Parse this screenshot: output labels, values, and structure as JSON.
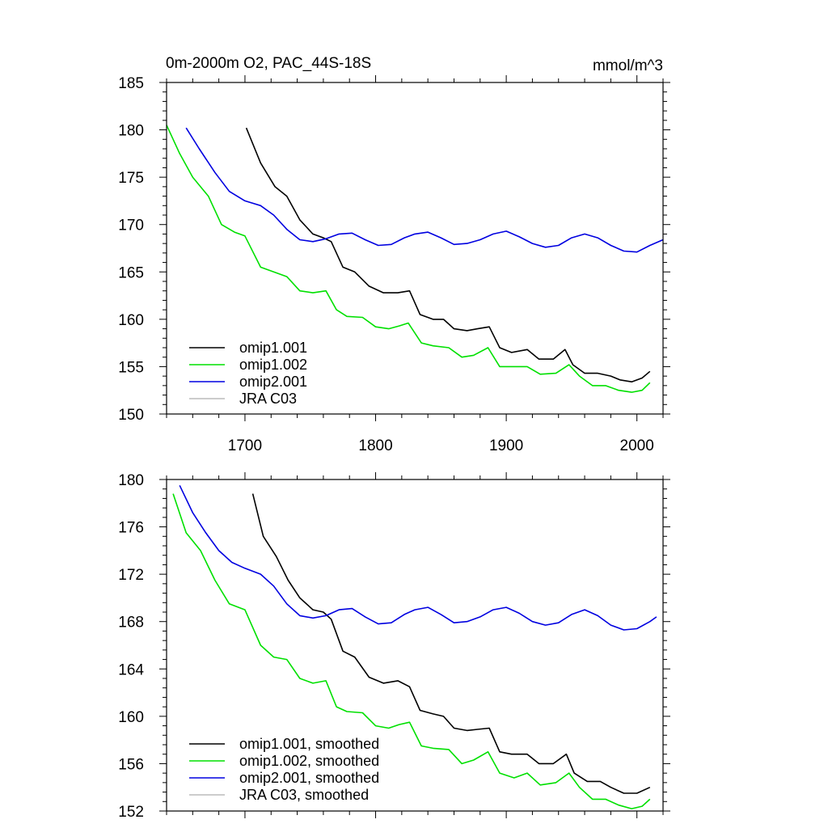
{
  "chart_data": [
    {
      "type": "line",
      "title": "0m-2000m O2, PAC_44S-18S",
      "unit_label": "mmol/m^3",
      "xlim": [
        1640,
        2020
      ],
      "ylim": [
        150,
        185
      ],
      "xticks": [
        1700,
        1800,
        1900,
        2000
      ],
      "xtick_labels": [
        "1700",
        "1800",
        "1900",
        "2000"
      ],
      "yticks": [
        150,
        155,
        160,
        165,
        170,
        175,
        180,
        185
      ],
      "ytick_labels": [
        "150",
        "155",
        "160",
        "165",
        "170",
        "175",
        "180",
        "185"
      ],
      "grid": false,
      "legend_position": "bottom-left",
      "legend": [
        {
          "label": "omip1.001",
          "color": "#000000"
        },
        {
          "label": "omip1.002",
          "color": "#00e000"
        },
        {
          "label": "omip2.001",
          "color": "#0000e0"
        },
        {
          "label": "JRA C03",
          "color": "#bbbbbb"
        }
      ],
      "series": [
        {
          "name": "omip1.001",
          "color": "#000000",
          "x": [
            1701,
            1712,
            1723,
            1732,
            1742,
            1752,
            1760,
            1766,
            1775,
            1784,
            1795,
            1806,
            1817,
            1826,
            1834,
            1844,
            1852,
            1860,
            1870,
            1878,
            1887,
            1895,
            1904,
            1916,
            1925,
            1936,
            1945,
            1951,
            1960,
            1970,
            1980,
            1987,
            1996,
            2004,
            2010
          ],
          "y": [
            180.2,
            176.5,
            174.0,
            173.0,
            170.5,
            169.0,
            168.6,
            168.2,
            165.5,
            165.0,
            163.5,
            162.8,
            162.8,
            163.0,
            160.5,
            160.0,
            160.0,
            159.0,
            158.8,
            159.0,
            159.2,
            157.0,
            156.5,
            156.8,
            155.8,
            155.8,
            156.8,
            155.2,
            154.3,
            154.3,
            154.0,
            153.6,
            153.4,
            153.8,
            154.5
          ]
        },
        {
          "name": "omip1.002",
          "color": "#00e000",
          "x": [
            1640,
            1650,
            1660,
            1672,
            1682,
            1692,
            1700,
            1712,
            1722,
            1732,
            1742,
            1752,
            1762,
            1770,
            1778,
            1790,
            1800,
            1810,
            1818,
            1825,
            1835,
            1844,
            1856,
            1866,
            1875,
            1886,
            1895,
            1906,
            1916,
            1926,
            1938,
            1948,
            1956,
            1966,
            1976,
            1986,
            1996,
            2004,
            2010
          ],
          "y": [
            180.5,
            177.5,
            175.0,
            173.0,
            170.0,
            169.2,
            168.8,
            165.5,
            165.0,
            164.5,
            163.0,
            162.8,
            163.0,
            161.0,
            160.3,
            160.2,
            159.2,
            159.0,
            159.3,
            159.6,
            157.5,
            157.2,
            157.0,
            156.0,
            156.2,
            157.0,
            155.0,
            155.0,
            155.0,
            154.2,
            154.3,
            155.2,
            154.0,
            153.0,
            153.0,
            152.5,
            152.3,
            152.5,
            153.3
          ]
        },
        {
          "name": "omip2.001",
          "color": "#0000e0",
          "x": [
            1655,
            1665,
            1677,
            1688,
            1700,
            1712,
            1722,
            1732,
            1742,
            1752,
            1762,
            1772,
            1782,
            1792,
            1802,
            1812,
            1822,
            1830,
            1840,
            1850,
            1860,
            1870,
            1880,
            1890,
            1900,
            1910,
            1920,
            1930,
            1940,
            1950,
            1960,
            1970,
            1980,
            1990,
            2000,
            2010,
            2020
          ],
          "y": [
            180.2,
            178.0,
            175.5,
            173.5,
            172.5,
            172.0,
            171.0,
            169.5,
            168.4,
            168.2,
            168.5,
            169.0,
            169.1,
            168.4,
            167.8,
            167.9,
            168.6,
            169.0,
            169.2,
            168.6,
            167.9,
            168.0,
            168.4,
            169.0,
            169.3,
            168.7,
            168.0,
            167.6,
            167.8,
            168.6,
            169.0,
            168.6,
            167.8,
            167.2,
            167.1,
            167.8,
            168.4
          ]
        },
        {
          "name": "JRA C03",
          "color": "#bbbbbb",
          "x": [],
          "y": []
        }
      ]
    },
    {
      "type": "line",
      "xlim": [
        1640,
        2020
      ],
      "ylim": [
        152,
        180
      ],
      "xticks": [
        1700,
        1800,
        1900,
        2000
      ],
      "yticks": [
        152,
        156,
        160,
        164,
        168,
        172,
        176,
        180
      ],
      "ytick_labels": [
        "152",
        "156",
        "160",
        "164",
        "168",
        "172",
        "176",
        "180"
      ],
      "grid": false,
      "legend_position": "bottom-left",
      "legend": [
        {
          "label": "omip1.001, smoothed",
          "color": "#000000"
        },
        {
          "label": "omip1.002, smoothed",
          "color": "#00e000"
        },
        {
          "label": "omip2.001, smoothed",
          "color": "#0000e0"
        },
        {
          "label": "JRA C03, smoothed",
          "color": "#bbbbbb"
        }
      ],
      "series": [
        {
          "name": "omip1.001, smoothed",
          "color": "#000000",
          "x": [
            1706,
            1714,
            1724,
            1733,
            1742,
            1752,
            1760,
            1766,
            1775,
            1784,
            1795,
            1806,
            1817,
            1826,
            1834,
            1844,
            1852,
            1860,
            1870,
            1878,
            1887,
            1895,
            1904,
            1916,
            1925,
            1936,
            1946,
            1952,
            1962,
            1972,
            1980,
            1990,
            2000,
            2010
          ],
          "y": [
            178.8,
            175.2,
            173.5,
            171.5,
            170.0,
            169.0,
            168.8,
            168.2,
            165.5,
            165.0,
            163.3,
            162.8,
            163.0,
            162.5,
            160.5,
            160.2,
            160.0,
            159.0,
            158.8,
            158.9,
            159.0,
            157.0,
            156.8,
            156.8,
            156.0,
            156.0,
            156.8,
            155.2,
            154.5,
            154.5,
            154.0,
            153.5,
            153.5,
            154.0
          ]
        },
        {
          "name": "omip1.002, smoothed",
          "color": "#00e000",
          "x": [
            1645,
            1655,
            1666,
            1677,
            1688,
            1700,
            1712,
            1722,
            1732,
            1742,
            1752,
            1762,
            1770,
            1778,
            1790,
            1800,
            1810,
            1818,
            1826,
            1835,
            1844,
            1856,
            1866,
            1875,
            1886,
            1895,
            1906,
            1916,
            1926,
            1938,
            1948,
            1956,
            1966,
            1976,
            1986,
            1996,
            2004,
            2010
          ],
          "y": [
            178.8,
            175.5,
            174.0,
            171.5,
            169.5,
            169.0,
            166.0,
            165.0,
            164.8,
            163.2,
            162.8,
            163.0,
            160.8,
            160.4,
            160.3,
            159.2,
            159.0,
            159.3,
            159.5,
            157.5,
            157.3,
            157.2,
            156.0,
            156.3,
            157.0,
            155.2,
            154.8,
            155.2,
            154.2,
            154.4,
            155.2,
            154.0,
            153.0,
            153.0,
            152.5,
            152.2,
            152.4,
            153.0
          ]
        },
        {
          "name": "omip2.001, smoothed",
          "color": "#0000e0",
          "x": [
            1650,
            1660,
            1670,
            1680,
            1690,
            1700,
            1712,
            1722,
            1732,
            1742,
            1752,
            1762,
            1772,
            1782,
            1792,
            1802,
            1812,
            1822,
            1830,
            1840,
            1850,
            1860,
            1870,
            1880,
            1890,
            1900,
            1910,
            1920,
            1930,
            1940,
            1950,
            1960,
            1970,
            1980,
            1990,
            2000,
            2010,
            2015
          ],
          "y": [
            179.5,
            177.2,
            175.5,
            174.0,
            173.0,
            172.5,
            172.0,
            171.0,
            169.5,
            168.5,
            168.3,
            168.5,
            169.0,
            169.1,
            168.4,
            167.8,
            167.9,
            168.6,
            169.0,
            169.2,
            168.6,
            167.9,
            168.0,
            168.4,
            169.0,
            169.2,
            168.7,
            168.0,
            167.7,
            167.9,
            168.6,
            169.0,
            168.5,
            167.7,
            167.3,
            167.4,
            168.0,
            168.4
          ]
        },
        {
          "name": "JRA C03, smoothed",
          "color": "#bbbbbb",
          "x": [],
          "y": []
        }
      ]
    }
  ]
}
